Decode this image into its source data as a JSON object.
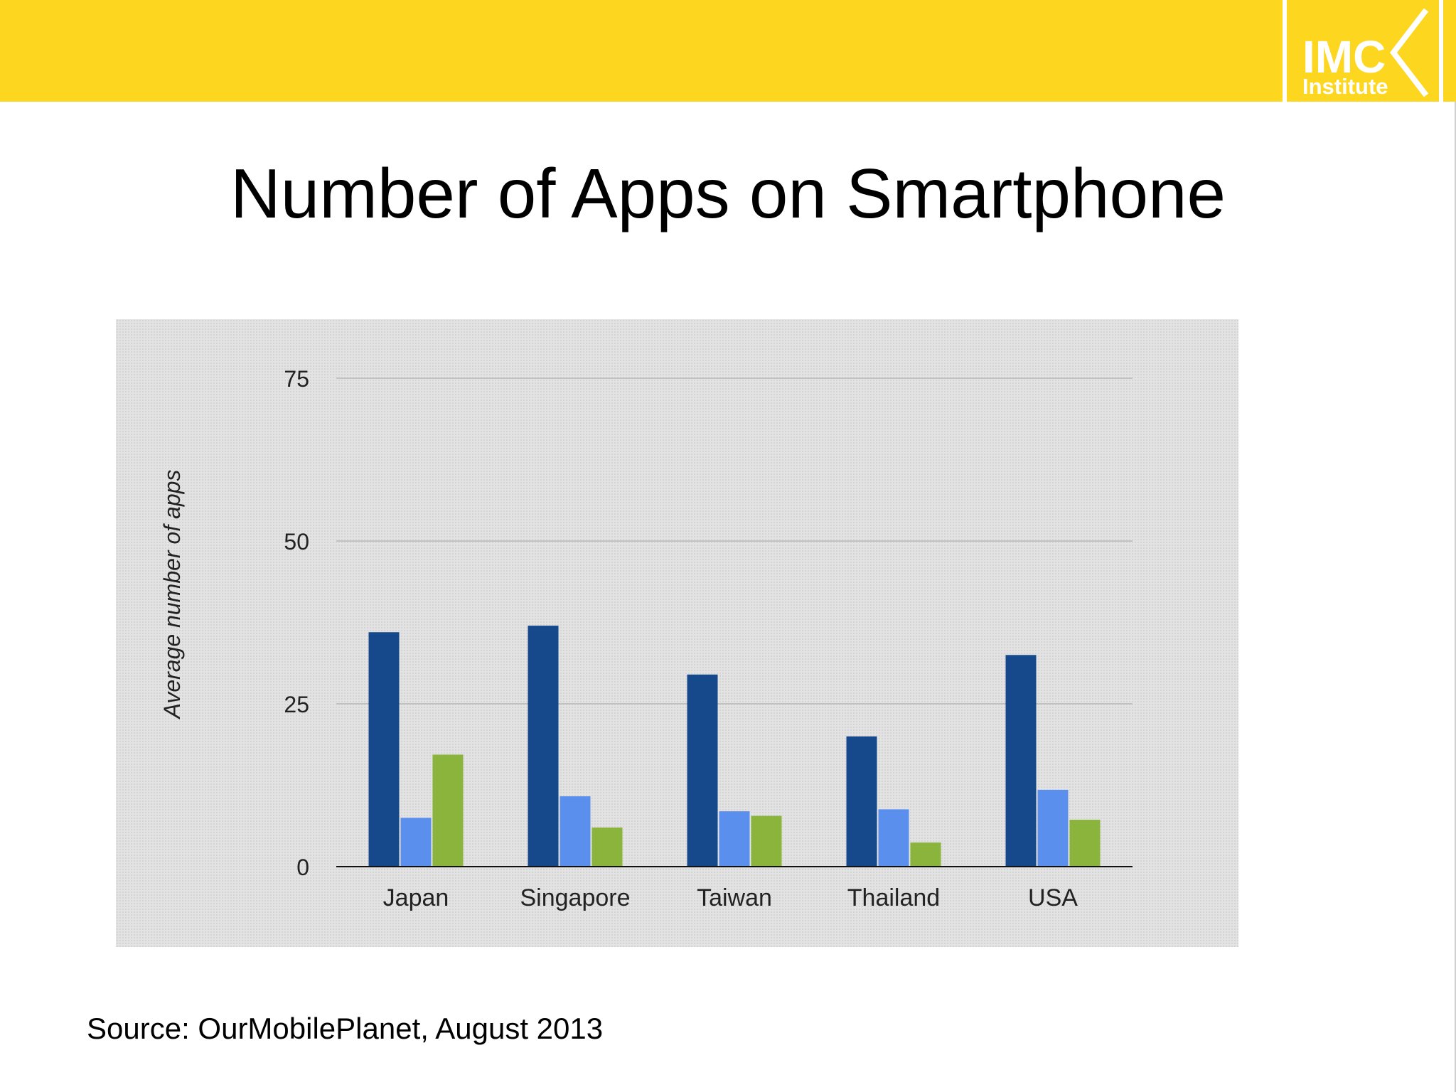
{
  "header": {
    "band_color": "#fdd620",
    "logo": {
      "line1": "IMC",
      "line2": "Institute",
      "text_color": "#ffffff"
    }
  },
  "title": "Number of Apps on Smartphone",
  "source": "Source: OurMobilePlanet, August 2013",
  "chart_data": {
    "type": "bar",
    "title": "",
    "xlabel": "",
    "ylabel": "Average number of apps",
    "ylim": [
      0,
      75
    ],
    "yticks": [
      0,
      25,
      50,
      75
    ],
    "grid": true,
    "legend": "none",
    "categories": [
      "Japan",
      "Singapore",
      "Taiwan",
      "Thailand",
      "USA"
    ],
    "series": [
      {
        "color": "#16488c",
        "values": [
          36,
          37,
          29.5,
          20,
          32.5
        ]
      },
      {
        "color": "#5b8fee",
        "values": [
          7.5,
          10.8,
          8.5,
          8.8,
          11.8
        ]
      },
      {
        "color": "#8ab43c",
        "values": [
          17.2,
          6,
          7.8,
          3.7,
          7.2
        ]
      }
    ]
  }
}
